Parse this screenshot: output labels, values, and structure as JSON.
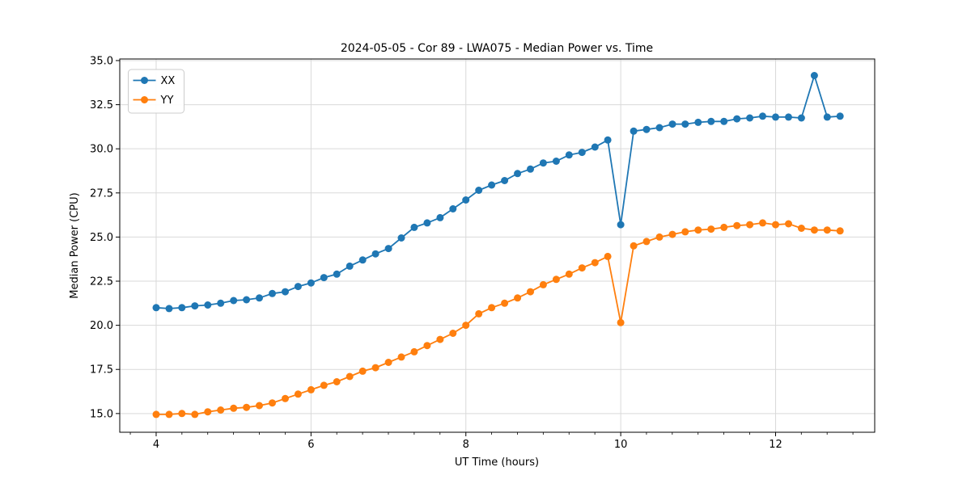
{
  "chart_data": {
    "type": "line",
    "title": "2024-05-05 - Cor 89 - LWA075 - Median Power vs. Time",
    "xlabel": "UT Time (hours)",
    "ylabel": "Median Power (CPU)",
    "xlim": [
      3.53,
      13.28
    ],
    "ylim": [
      13.94,
      35.09
    ],
    "grid": true,
    "background_color": "#ffffff",
    "grid_color": "#d9d9d9",
    "spine_color": "#000000",
    "legend_position": "upper-left",
    "x_major_ticks": [
      4,
      6,
      8,
      10,
      12
    ],
    "x_tick_labels": [
      "4",
      "6",
      "8",
      "10",
      "12"
    ],
    "x_minor_step": 0.3333,
    "y_major_ticks": [
      15.0,
      17.5,
      20.0,
      22.5,
      25.0,
      27.5,
      30.0,
      32.5,
      35.0
    ],
    "y_tick_labels": [
      "15.0",
      "17.5",
      "20.0",
      "22.5",
      "25.0",
      "27.5",
      "30.0",
      "32.5",
      "35.0"
    ],
    "x": [
      4.0,
      4.167,
      4.333,
      4.5,
      4.667,
      4.833,
      5.0,
      5.167,
      5.333,
      5.5,
      5.667,
      5.833,
      6.0,
      6.167,
      6.333,
      6.5,
      6.667,
      6.833,
      7.0,
      7.167,
      7.333,
      7.5,
      7.667,
      7.833,
      8.0,
      8.167,
      8.333,
      8.5,
      8.667,
      8.833,
      9.0,
      9.167,
      9.333,
      9.5,
      9.667,
      9.833,
      10.0,
      10.167,
      10.333,
      10.5,
      10.667,
      10.833,
      11.0,
      11.167,
      11.333,
      11.5,
      11.667,
      11.833,
      12.0,
      12.167,
      12.333,
      12.5,
      12.667,
      12.833
    ],
    "series": [
      {
        "name": "XX",
        "color": "#1f77b4",
        "values": [
          21.0,
          20.95,
          21.0,
          21.1,
          21.15,
          21.25,
          21.4,
          21.45,
          21.55,
          21.8,
          21.9,
          22.2,
          22.4,
          22.7,
          22.9,
          23.35,
          23.7,
          24.05,
          24.35,
          24.95,
          25.55,
          25.8,
          26.1,
          26.6,
          27.1,
          27.65,
          27.95,
          28.2,
          28.6,
          28.85,
          29.2,
          29.3,
          29.65,
          29.8,
          30.1,
          30.5,
          25.7,
          31.0,
          31.1,
          31.2,
          31.4,
          31.4,
          31.5,
          31.55,
          31.55,
          31.7,
          31.75,
          31.85,
          31.8,
          31.8,
          31.75,
          34.15,
          31.8,
          31.85
        ]
      },
      {
        "name": "YY",
        "color": "#ff7f0e",
        "values": [
          14.95,
          14.95,
          15.0,
          14.95,
          15.1,
          15.2,
          15.3,
          15.35,
          15.45,
          15.6,
          15.85,
          16.1,
          16.35,
          16.6,
          16.8,
          17.1,
          17.4,
          17.6,
          17.9,
          18.2,
          18.5,
          18.85,
          19.2,
          19.55,
          20.0,
          20.65,
          21.0,
          21.25,
          21.55,
          21.9,
          22.3,
          22.6,
          22.9,
          23.25,
          23.55,
          23.9,
          20.15,
          24.5,
          24.75,
          25.0,
          25.15,
          25.3,
          25.4,
          25.45,
          25.55,
          25.65,
          25.7,
          25.8,
          25.7,
          25.75,
          25.5,
          25.4,
          25.4,
          25.35
        ]
      }
    ]
  }
}
